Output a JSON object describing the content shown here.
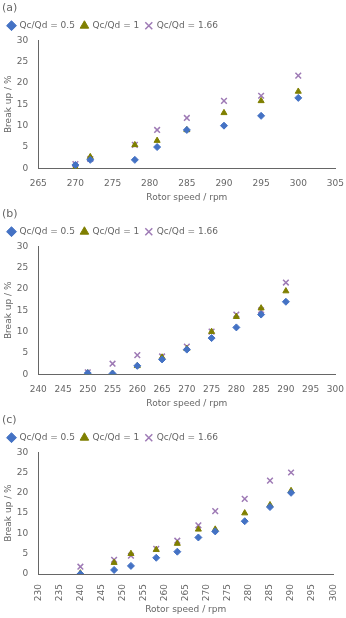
{
  "chart_data": [
    {
      "type": "scatter",
      "title": "(a)",
      "x_label": "Rotor speed / rpm",
      "y_label": "Break up / %",
      "xlim": [
        265,
        305
      ],
      "xticks": [
        265,
        270,
        275,
        280,
        285,
        290,
        295,
        300,
        305
      ],
      "ylim": [
        0,
        30
      ],
      "yticks": [
        0,
        5,
        10,
        15,
        20,
        25,
        30
      ],
      "grid": false,
      "legend": "upper left",
      "x": [
        270,
        272,
        278,
        281,
        285,
        290,
        295,
        300
      ],
      "series": [
        {
          "name": "Qc/Qd = 0.5",
          "color": "#4472c4",
          "marker": "diamond",
          "values": [
            0.8,
            2.0,
            2.0,
            5.0,
            9.0,
            10.0,
            12.3,
            16.5
          ]
        },
        {
          "name": "Qc/Qd = 1",
          "color": "#7f7f00",
          "marker": "triangle",
          "values": [
            0.2,
            2.7,
            5.5,
            6.5,
            9.0,
            13.0,
            15.8,
            18.0
          ]
        },
        {
          "name": "Qc/Qd = 1.66",
          "color": "#9e7ab5",
          "marker": "x",
          "values": [
            1.0,
            2.2,
            5.5,
            9.0,
            11.8,
            15.8,
            17.0,
            21.7
          ]
        }
      ]
    },
    {
      "type": "scatter",
      "title": "(b)",
      "x_label": "Rotor speed / rpm",
      "y_label": "Break up / %",
      "xlim": [
        240,
        300
      ],
      "xticks": [
        240,
        245,
        250,
        255,
        260,
        265,
        270,
        275,
        280,
        285,
        290,
        295,
        300
      ],
      "ylim": [
        0,
        30
      ],
      "yticks": [
        0,
        5,
        10,
        15,
        20,
        25,
        30
      ],
      "grid": false,
      "legend": "upper left",
      "x": [
        250,
        255,
        260,
        265,
        270,
        275,
        280,
        285,
        290
      ],
      "series": [
        {
          "name": "Qc/Qd = 0.5",
          "color": "#4472c4",
          "marker": "diamond",
          "values": [
            0.3,
            0.2,
            2.0,
            3.5,
            5.8,
            8.5,
            11.0,
            14.0,
            17.0
          ]
        },
        {
          "name": "Qc/Qd = 1",
          "color": "#7f7f00",
          "marker": "triangle",
          "values": [
            0.3,
            0.2,
            2.0,
            4.0,
            6.0,
            10.0,
            13.5,
            15.5,
            19.5
          ]
        },
        {
          "name": "Qc/Qd = 1.66",
          "color": "#9e7ab5",
          "marker": "x",
          "values": [
            0.5,
            2.5,
            4.5,
            4.2,
            6.5,
            10.0,
            14.0,
            15.0,
            21.5
          ]
        }
      ]
    },
    {
      "type": "scatter",
      "title": "(c)",
      "x_label": "Rotor speed / rpm",
      "y_label": "Break up / %",
      "xlim": [
        230,
        300
      ],
      "xticks": [
        230,
        235,
        240,
        245,
        250,
        255,
        260,
        265,
        270,
        275,
        280,
        285,
        290,
        295,
        300
      ],
      "ylim": [
        0,
        30
      ],
      "yticks": [
        0,
        5,
        10,
        15,
        20,
        25,
        30
      ],
      "grid": false,
      "legend": "upper left",
      "x": [
        240,
        248,
        252,
        258,
        263,
        268,
        272,
        279,
        285,
        290
      ],
      "series": [
        {
          "name": "Qc/Qd = 0.5",
          "color": "#4472c4",
          "marker": "diamond",
          "values": [
            0.0,
            1.0,
            2.0,
            4.0,
            5.5,
            9.0,
            10.5,
            13.0,
            16.5,
            20.0
          ]
        },
        {
          "name": "Qc/Qd = 1",
          "color": "#7f7f00",
          "marker": "triangle",
          "values": [
            0.2,
            2.8,
            5.0,
            6.0,
            7.5,
            11.0,
            11.0,
            15.0,
            17.0,
            20.5
          ]
        },
        {
          "name": "Qc/Qd = 1.66",
          "color": "#9e7ab5",
          "marker": "x",
          "values": [
            1.8,
            3.5,
            4.5,
            6.2,
            8.2,
            12.0,
            15.5,
            18.5,
            23.0,
            25.0
          ]
        }
      ]
    }
  ]
}
